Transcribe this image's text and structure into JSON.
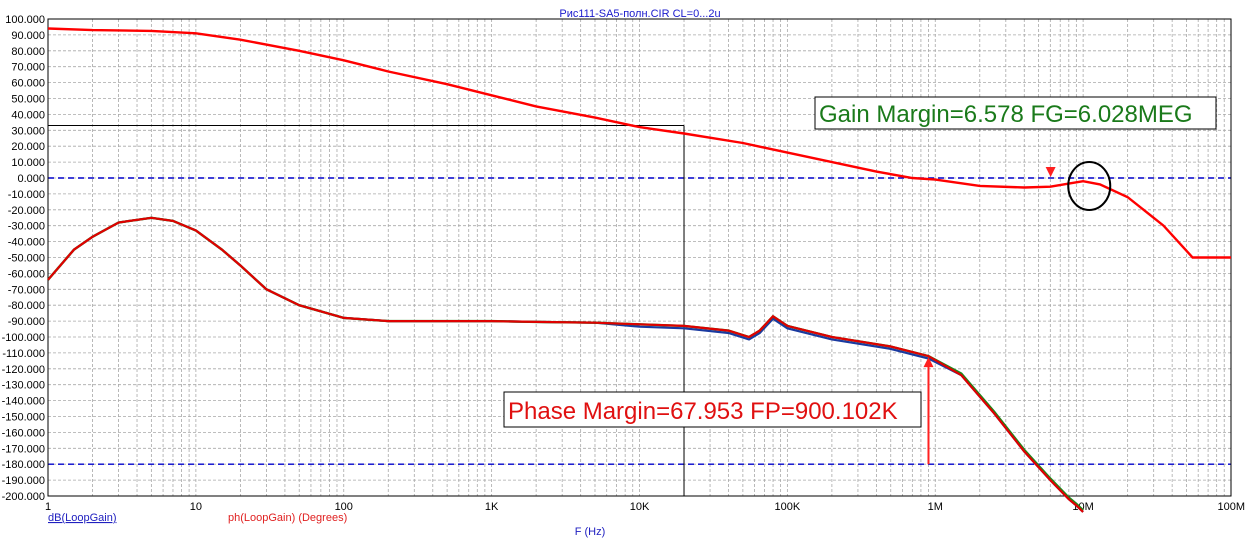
{
  "window_title": "Рис111-SA5-полн.CIR CL=0...2u",
  "colors": {
    "gain": "#ff0000",
    "phase": "#e00000",
    "phase_shadow_green": "#1a8a1a",
    "phase_shadow_blue": "#1a3aa0",
    "reference_line": "#0000cc",
    "grid": "#a8a8a8",
    "annotation_gain": "#1a7a1a",
    "annotation_phase": "#e01010"
  },
  "legend": {
    "gain_label": "dB(LoopGain)",
    "phase_label": "ph(LoopGain) (Degrees)"
  },
  "annotations": {
    "gain_margin": "Gain Margin=6.578 FG=6.028MEG",
    "phase_margin": "Phase Margin=67.953 FP=900.102K"
  },
  "chart_data": {
    "type": "line",
    "title": "Рис111-SA5-полн.CIR CL=0...2u",
    "xlabel": "F (Hz)",
    "x_scale": "log",
    "xlim": [
      1,
      100000000
    ],
    "x_ticks": [
      {
        "value": 1,
        "label": "1"
      },
      {
        "value": 10,
        "label": "10"
      },
      {
        "value": 100,
        "label": "100"
      },
      {
        "value": 1000,
        "label": "1K"
      },
      {
        "value": 10000,
        "label": "10K"
      },
      {
        "value": 100000,
        "label": "100K"
      },
      {
        "value": 1000000,
        "label": "1M"
      },
      {
        "value": 10000000,
        "label": "10M"
      },
      {
        "value": 100000000,
        "label": "100M"
      }
    ],
    "ylim": [
      -200,
      100
    ],
    "y_ticks": [
      100,
      90,
      80,
      70,
      60,
      50,
      40,
      30,
      20,
      10,
      0,
      -10,
      -20,
      -30,
      -40,
      -50,
      -60,
      -70,
      -80,
      -90,
      -100,
      -110,
      -120,
      -130,
      -140,
      -150,
      -160,
      -170,
      -180,
      -190,
      -200
    ],
    "y_tick_labels": [
      "100.000",
      "90.000",
      "80.000",
      "70.000",
      "60.000",
      "50.000",
      "40.000",
      "30.000",
      "20.000",
      "10.000",
      "0.000",
      "-10.000",
      "-20.000",
      "-30.000",
      "-40.000",
      "-50.000",
      "-60.000",
      "-70.000",
      "-80.000",
      "-90.000",
      "-100.000",
      "-110.000",
      "-120.000",
      "-130.000",
      "-140.000",
      "-150.000",
      "-160.000",
      "-170.000",
      "-180.000",
      "-190.000",
      "-200.000"
    ],
    "grid": true,
    "reference_lines": [
      0,
      -180
    ],
    "cursor": {
      "x": 20000,
      "y": 33
    },
    "series": [
      {
        "name": "dB(LoopGain)",
        "x": [
          1,
          2,
          5,
          10,
          20,
          50,
          100,
          200,
          500,
          1000,
          2000,
          5000,
          10000,
          20000,
          50000,
          100000,
          200000,
          400000,
          700000,
          1000000,
          2000000,
          4000000,
          6000000,
          8000000,
          10000000,
          13000000,
          20000000,
          35000000,
          55000000,
          100000000
        ],
        "values": [
          94,
          93,
          92.5,
          91,
          87,
          80,
          74,
          67,
          59,
          52,
          45,
          38,
          32,
          28,
          22,
          16,
          10,
          4,
          0,
          -1,
          -5,
          -6,
          -5.5,
          -3.5,
          -2,
          -4,
          -12,
          -30,
          -50,
          -50
        ]
      },
      {
        "name": "ph(LoopGain)",
        "x": [
          1,
          1.5,
          2,
          3,
          5,
          7,
          10,
          15,
          20,
          30,
          50,
          100,
          200,
          500,
          1000,
          2000,
          5000,
          10000,
          20000,
          40000,
          55000,
          65000,
          80000,
          100000,
          200000,
          500000,
          900000,
          1500000,
          2500000,
          4000000,
          6000000,
          8000000,
          9000000,
          10000000
        ],
        "values": [
          -64,
          -45,
          -37,
          -28,
          -25,
          -27,
          -33,
          -45,
          -55,
          -70,
          -80,
          -88,
          -90,
          -90,
          -90,
          -90.5,
          -91,
          -92,
          -93,
          -96,
          -100,
          -96,
          -87,
          -93,
          -100,
          -106,
          -112,
          -124,
          -148,
          -172,
          -190,
          -202,
          -206,
          -210
        ]
      }
    ],
    "markers": [
      {
        "x": 6028000,
        "y": -6.578
      },
      {
        "x": 900102,
        "y": -112
      }
    ]
  }
}
